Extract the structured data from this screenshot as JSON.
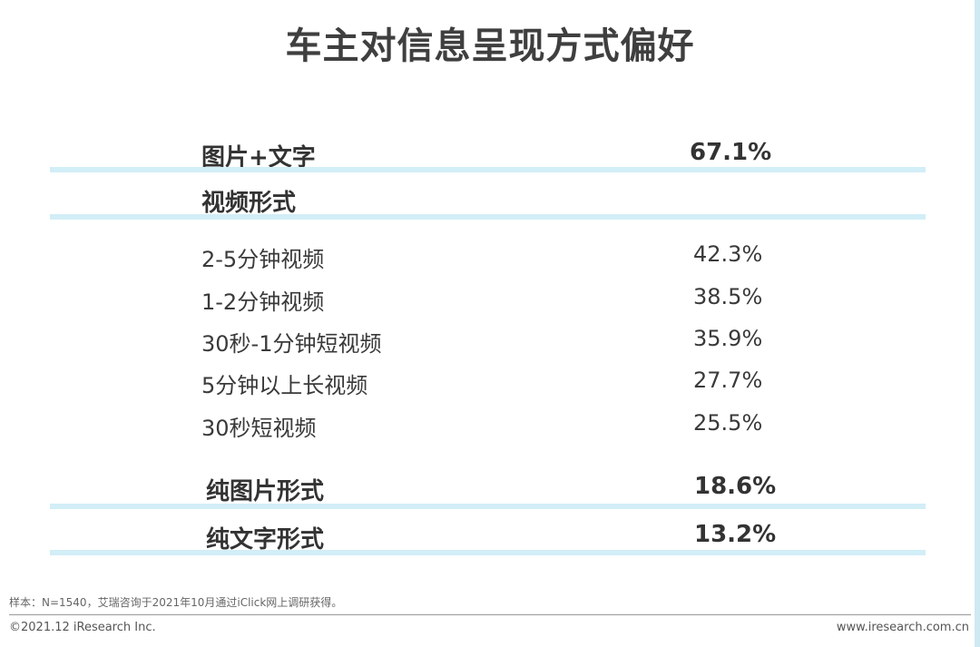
{
  "chart_data": {
    "type": "table",
    "title": "车主对信息呈现方式偏好",
    "rows": [
      {
        "label": "图片+文字",
        "value": "67.1%",
        "level": "main"
      },
      {
        "label": "视频形式",
        "value": "",
        "level": "main"
      },
      {
        "label": "2-5分钟视频",
        "value": "42.3%",
        "level": "sub"
      },
      {
        "label": "1-2分钟视频",
        "value": "38.5%",
        "level": "sub"
      },
      {
        "label": "30秒-1分钟短视频",
        "value": "35.9%",
        "level": "sub"
      },
      {
        "label": "5分钟以上长视频",
        "value": "27.7%",
        "level": "sub"
      },
      {
        "label": "30秒短视频",
        "value": "25.5%",
        "level": "sub"
      },
      {
        "label": "纯图片形式",
        "value": "18.6%",
        "level": "main"
      },
      {
        "label": "纯文字形式",
        "value": "13.2%",
        "level": "main"
      }
    ],
    "accent_color": "#d2eef6"
  },
  "footer": {
    "note": "样本：N=1540，艾瑞咨询于2021年10月通过iClick网上调研获得。",
    "copyright": "©2021.12 iResearch Inc.",
    "website": "www.iresearch.com.cn"
  }
}
